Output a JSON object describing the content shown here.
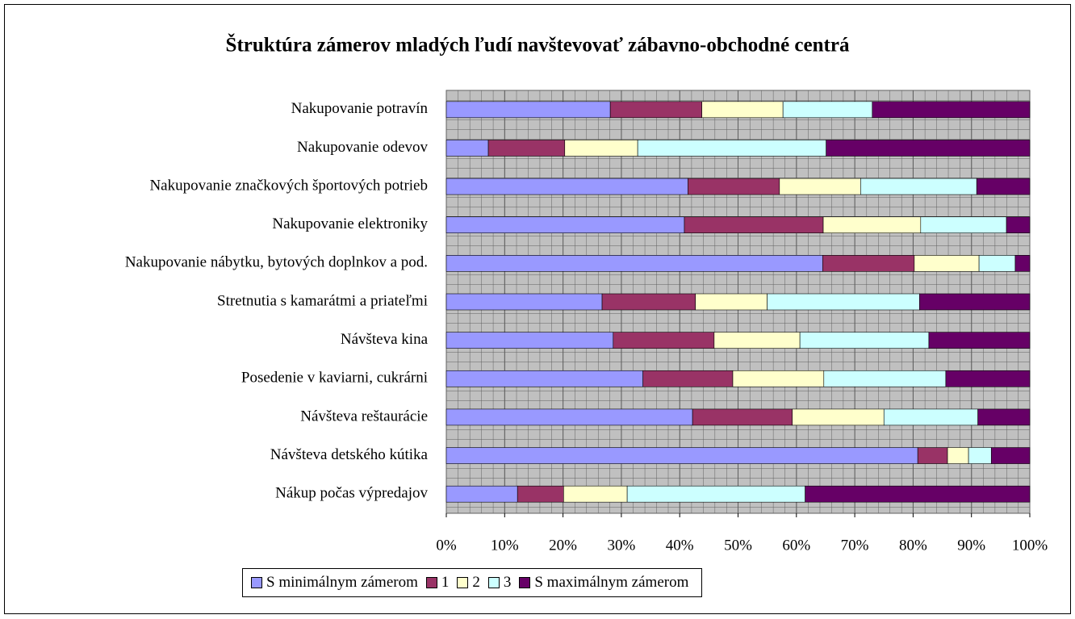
{
  "chart_data": {
    "type": "stacked_bar_horizontal",
    "title": "Štruktúra zámerov mladých ľudí navštevovať zábavno-obchodné centrá",
    "categories": [
      "Nakupovanie potravín",
      "Nakupovanie odevov",
      "Nakupovanie značkových športových potrieb",
      "Nakupovanie elektroniky",
      "Nakupovanie nábytku, bytových doplnkov a pod.",
      "Stretnutia s kamarátmi a priateľmi",
      "Návšteva kina",
      "Posedenie v kaviarni, cukrárni",
      "Návšteva reštaurácie",
      "Návšteva detského kútika",
      "Nákup počas výpredajov"
    ],
    "series": [
      {
        "name": "S minimálnym zámerom",
        "color": "#9999ff",
        "values": [
          28.1,
          7.2,
          41.4,
          40.8,
          64.5,
          26.7,
          28.6,
          33.7,
          42.2,
          80.8,
          12.2
        ]
      },
      {
        "name": "1",
        "color": "#993366",
        "values": [
          15.7,
          13.1,
          15.7,
          23.8,
          15.7,
          16.0,
          17.3,
          15.4,
          17.1,
          5.1,
          7.9
        ]
      },
      {
        "name": "2",
        "color": "#ffffcc",
        "values": [
          13.9,
          12.5,
          13.9,
          16.7,
          11.1,
          12.3,
          14.7,
          15.6,
          15.7,
          3.6,
          10.9
        ]
      },
      {
        "name": "3",
        "color": "#ccffff",
        "values": [
          15.3,
          32.3,
          19.9,
          14.7,
          6.2,
          26.1,
          22.1,
          20.9,
          16.1,
          3.9,
          30.5
        ]
      },
      {
        "name": "S maximálnym zámerom",
        "color": "#660066",
        "values": [
          27.0,
          34.9,
          9.1,
          4.0,
          2.5,
          18.9,
          17.3,
          14.4,
          8.9,
          6.6,
          38.5
        ]
      }
    ],
    "xlim": [
      0,
      100
    ],
    "xticks": [
      {
        "value": 0,
        "label": "0%"
      },
      {
        "value": 10,
        "label": "10%"
      },
      {
        "value": 20,
        "label": "20%"
      },
      {
        "value": 30,
        "label": "30%"
      },
      {
        "value": 40,
        "label": "40%"
      },
      {
        "value": 50,
        "label": "50%"
      },
      {
        "value": 60,
        "label": "60%"
      },
      {
        "value": 70,
        "label": "70%"
      },
      {
        "value": 80,
        "label": "80%"
      },
      {
        "value": 90,
        "label": "90%"
      },
      {
        "value": 100,
        "label": "100%"
      }
    ],
    "grid": true
  }
}
